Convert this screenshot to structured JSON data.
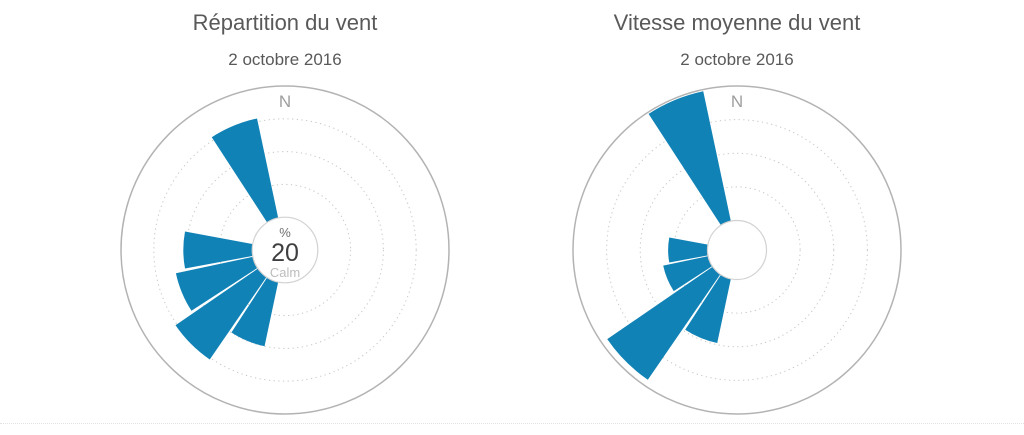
{
  "colors": {
    "wedge": "#1182b6",
    "outer_ring": "#b3b3b3",
    "dotted_ring": "#c8c8c8",
    "hole_border": "#d2d2d2",
    "title_text": "#595959",
    "north_label": "#9e9e9e",
    "center_value": "#3f3f41",
    "center_unit": "#707070",
    "center_caption": "#bcbcbc"
  },
  "chart_data": [
    {
      "type": "wind-rose",
      "title": "Répartition du vent",
      "subtitle": "2 octobre 2016",
      "north_label": "N",
      "units_hint": "%",
      "center": {
        "unit": "%",
        "value": "20",
        "caption": "Calm"
      },
      "rings": {
        "dotted_count": 3,
        "hole_fraction": 0.2
      },
      "sector_width_deg": 21,
      "sectors": [
        {
          "direction": "NNW",
          "compass_deg": 337.5,
          "radius_fraction": 0.82
        },
        {
          "direction": "W",
          "compass_deg": 270.0,
          "radius_fraction": 0.62
        },
        {
          "direction": "WSW",
          "compass_deg": 247.5,
          "radius_fraction": 0.68
        },
        {
          "direction": "SW",
          "compass_deg": 225.0,
          "radius_fraction": 0.81
        },
        {
          "direction": "SSW",
          "compass_deg": 202.5,
          "radius_fraction": 0.6
        }
      ]
    },
    {
      "type": "wind-rose",
      "title": "Vitesse moyenne du vent",
      "subtitle": "2 octobre 2016",
      "north_label": "N",
      "units_hint": "",
      "center": null,
      "rings": {
        "dotted_count": 3,
        "hole_fraction": 0.18
      },
      "sector_width_deg": 21,
      "sectors": [
        {
          "direction": "NNW",
          "compass_deg": 337.5,
          "radius_fraction": 0.99
        },
        {
          "direction": "W",
          "compass_deg": 270.0,
          "radius_fraction": 0.42
        },
        {
          "direction": "WSW",
          "compass_deg": 247.5,
          "radius_fraction": 0.46
        },
        {
          "direction": "SW",
          "compass_deg": 225.0,
          "radius_fraction": 0.96
        },
        {
          "direction": "SSW",
          "compass_deg": 202.5,
          "radius_fraction": 0.58
        }
      ]
    }
  ]
}
